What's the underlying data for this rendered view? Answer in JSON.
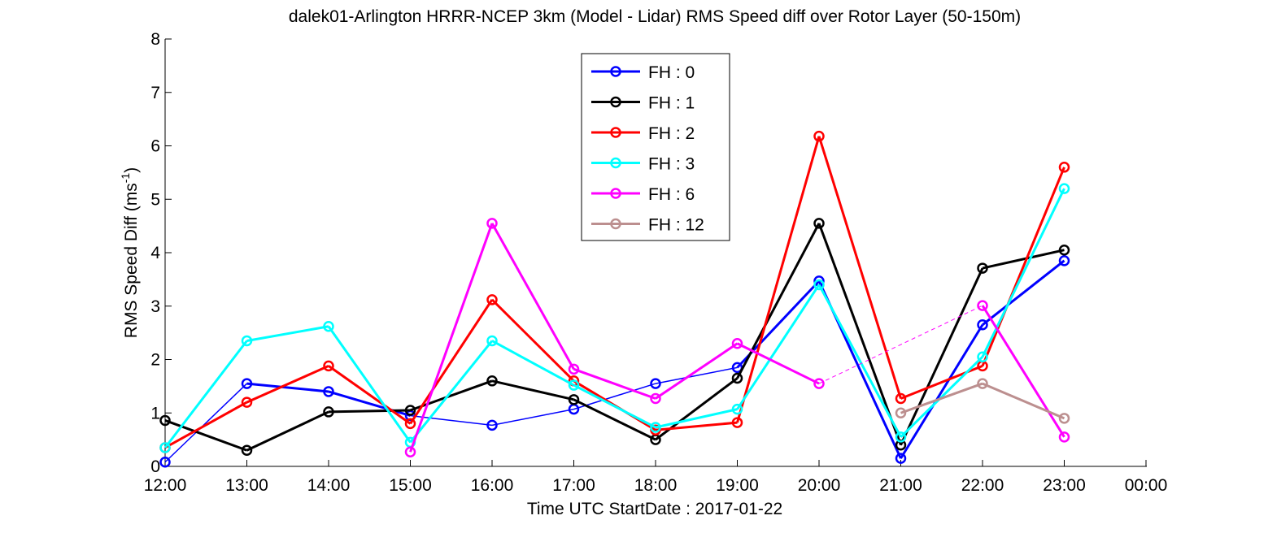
{
  "chart_data": {
    "type": "line",
    "title": "dalek01-Arlington HRRR-NCEP 3km (Model - Lidar) RMS Speed diff over Rotor Layer (50-150m)",
    "xlabel": "Time UTC    StartDate : 2017-01-22",
    "ylabel_main": "RMS Speed Diff (ms",
    "ylabel_sup": "-1",
    "ylabel_end": ")",
    "x_ticks": [
      "12:00",
      "13:00",
      "14:00",
      "15:00",
      "16:00",
      "17:00",
      "18:00",
      "19:00",
      "20:00",
      "21:00",
      "22:00",
      "23:00",
      "00:00"
    ],
    "y_ticks": [
      "0",
      "1",
      "2",
      "3",
      "4",
      "5",
      "6",
      "7",
      "8"
    ],
    "ylim": [
      0,
      8
    ],
    "legend_position": "top-center",
    "series": [
      {
        "name": "FH : 0",
        "color": "#0000ff",
        "values": [
          0.08,
          1.55,
          1.4,
          0.95,
          0.77,
          1.07,
          1.55,
          1.85,
          3.47,
          0.15,
          2.65,
          3.85
        ],
        "gaps": []
      },
      {
        "name": "FH : 1",
        "color": "#000000",
        "values": [
          0.86,
          0.3,
          1.02,
          1.05,
          1.6,
          1.25,
          0.5,
          1.65,
          4.55,
          0.4,
          3.71,
          4.05
        ],
        "gaps": []
      },
      {
        "name": "FH : 2",
        "color": "#ff0000",
        "values": [
          0.35,
          1.2,
          1.88,
          0.8,
          3.12,
          1.6,
          0.68,
          0.82,
          6.18,
          1.27,
          1.88,
          5.6
        ],
        "gaps": []
      },
      {
        "name": "FH : 3",
        "color": "#00ffff",
        "values": [
          0.35,
          2.35,
          2.62,
          0.45,
          2.35,
          1.52,
          0.73,
          1.07,
          3.4,
          0.55,
          2.05,
          5.2
        ],
        "gaps": []
      },
      {
        "name": "FH : 6",
        "color": "#ff00ff",
        "values": [
          null,
          null,
          null,
          0.27,
          4.55,
          1.82,
          1.27,
          2.3,
          1.55,
          null,
          3.01,
          0.55
        ],
        "gaps": [
          [
            8,
            10
          ]
        ]
      },
      {
        "name": "FH : 12",
        "color": "#bc8f8f",
        "values": [
          null,
          null,
          null,
          null,
          null,
          null,
          null,
          null,
          null,
          1.0,
          1.55,
          0.9
        ],
        "gaps": []
      }
    ]
  }
}
